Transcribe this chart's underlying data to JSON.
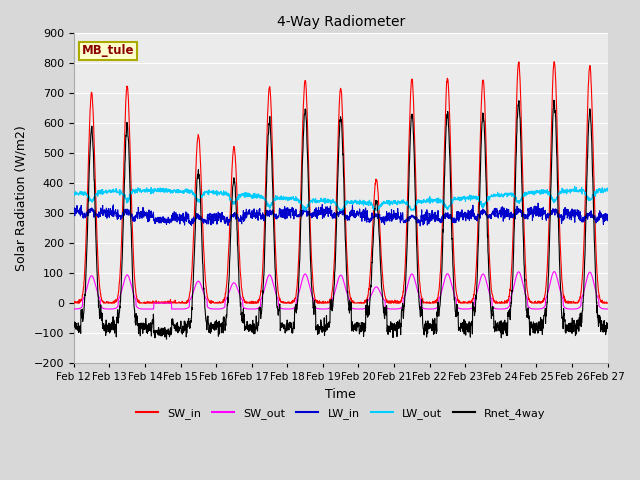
{
  "title": "4-Way Radiometer",
  "xlabel": "Time",
  "ylabel": "Solar Radiation (W/m2)",
  "ylim": [
    -200,
    900
  ],
  "yticks": [
    -200,
    -100,
    0,
    100,
    200,
    300,
    400,
    500,
    600,
    700,
    800,
    900
  ],
  "x_labels": [
    "Feb 12",
    "Feb 13",
    "Feb 14",
    "Feb 15",
    "Feb 16",
    "Feb 17",
    "Feb 18",
    "Feb 19",
    "Feb 20",
    "Feb 21",
    "Feb 22",
    "Feb 23",
    "Feb 24",
    "Feb 25",
    "Feb 26",
    "Feb 27"
  ],
  "station_label": "MB_tule",
  "colors": {
    "SW_in": "#ff0000",
    "SW_out": "#ff00ff",
    "LW_in": "#0000cc",
    "LW_out": "#00ccff",
    "Rnet_4way": "#000000"
  },
  "n_days": 15,
  "pts_per_day": 144,
  "SW_in_peaks": [
    700,
    720,
    0,
    560,
    520,
    720,
    745,
    715,
    415,
    745,
    750,
    745,
    800,
    805,
    790
  ],
  "SW_out_night": -20,
  "LW_out_base": 355,
  "LW_in_base": 280,
  "Rnet_night": -80,
  "figsize": [
    6.4,
    4.8
  ],
  "dpi": 100,
  "bg_color": "#d8d8d8",
  "plot_bg": "#ebebeb",
  "grid_color": "#ffffff",
  "title_fontsize": 10,
  "axis_fontsize": 9,
  "tick_fontsize": 8,
  "legend_fontsize": 8
}
